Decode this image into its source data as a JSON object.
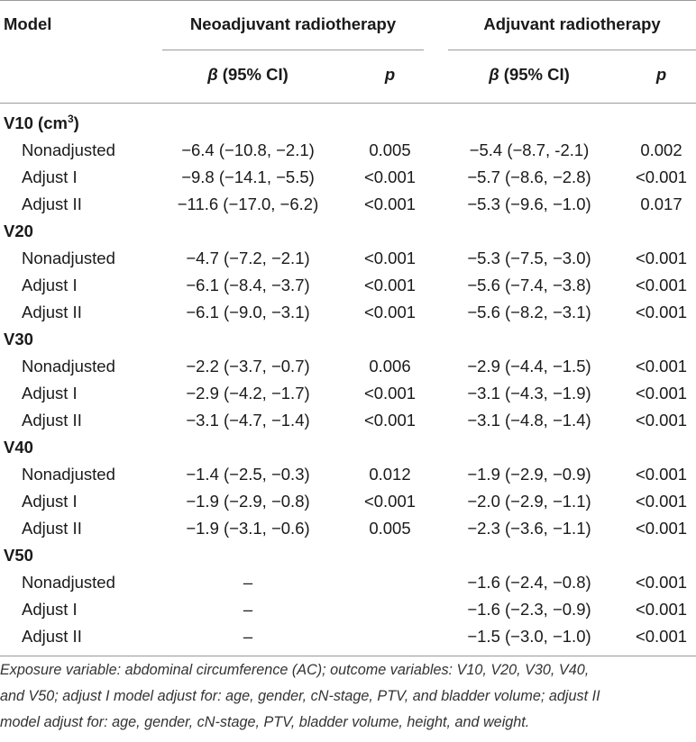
{
  "header": {
    "model": "Model",
    "neo": "Neoadjuvant radiotherapy",
    "adj": "Adjuvant radiotherapy",
    "beta_symbol": "β",
    "beta_rest": " (95% CI)",
    "p": "p"
  },
  "groups": [
    {
      "label": "V10 (cm",
      "sup": "3",
      "label_end": ")",
      "rows": [
        {
          "model": "Nonadjusted",
          "neo_beta": "−6.4 (−10.8, −2.1)",
          "neo_p": "0.005",
          "adj_beta": "−5.4 (−8.7, -2.1)",
          "adj_p": "0.002"
        },
        {
          "model": "Adjust I",
          "neo_beta": "−9.8 (−14.1, −5.5)",
          "neo_p": "<0.001",
          "adj_beta": "−5.7 (−8.6, −2.8)",
          "adj_p": "<0.001"
        },
        {
          "model": "Adjust II",
          "neo_beta": "−11.6 (−17.0, −6.2)",
          "neo_p": "<0.001",
          "adj_beta": "−5.3 (−9.6, −1.0)",
          "adj_p": "0.017"
        }
      ]
    },
    {
      "label": "V20",
      "rows": [
        {
          "model": "Nonadjusted",
          "neo_beta": "−4.7 (−7.2, −2.1)",
          "neo_p": "<0.001",
          "adj_beta": "−5.3 (−7.5, −3.0)",
          "adj_p": "<0.001"
        },
        {
          "model": "Adjust I",
          "neo_beta": "−6.1 (−8.4, −3.7)",
          "neo_p": "<0.001",
          "adj_beta": "−5.6 (−7.4, −3.8)",
          "adj_p": "<0.001"
        },
        {
          "model": "Adjust II",
          "neo_beta": "−6.1 (−9.0, −3.1)",
          "neo_p": "<0.001",
          "adj_beta": "−5.6 (−8.2, −3.1)",
          "adj_p": "<0.001"
        }
      ]
    },
    {
      "label": "V30",
      "rows": [
        {
          "model": "Nonadjusted",
          "neo_beta": "−2.2 (−3.7, −0.7)",
          "neo_p": "0.006",
          "adj_beta": "−2.9 (−4.4, −1.5)",
          "adj_p": "<0.001"
        },
        {
          "model": "Adjust I",
          "neo_beta": "−2.9 (−4.2, −1.7)",
          "neo_p": "<0.001",
          "adj_beta": "−3.1 (−4.3, −1.9)",
          "adj_p": "<0.001"
        },
        {
          "model": "Adjust II",
          "neo_beta": "−3.1 (−4.7, −1.4)",
          "neo_p": "<0.001",
          "adj_beta": "−3.1 (−4.8, −1.4)",
          "adj_p": "<0.001"
        }
      ]
    },
    {
      "label": "V40",
      "rows": [
        {
          "model": "Nonadjusted",
          "neo_beta": "−1.4 (−2.5, −0.3)",
          "neo_p": "0.012",
          "adj_beta": "−1.9 (−2.9, −0.9)",
          "adj_p": "<0.001"
        },
        {
          "model": "Adjust I",
          "neo_beta": "−1.9 (−2.9, −0.8)",
          "neo_p": "<0.001",
          "adj_beta": "−2.0 (−2.9, −1.1)",
          "adj_p": "<0.001"
        },
        {
          "model": "Adjust II",
          "neo_beta": "−1.9 (−3.1, −0.6)",
          "neo_p": "0.005",
          "adj_beta": "−2.3 (−3.6, −1.1)",
          "adj_p": "<0.001"
        }
      ]
    },
    {
      "label": "V50",
      "rows": [
        {
          "model": "Nonadjusted",
          "neo_beta": "–",
          "neo_p": "",
          "adj_beta": "−1.6 (−2.4, −0.8)",
          "adj_p": "<0.001"
        },
        {
          "model": "Adjust I",
          "neo_beta": "–",
          "neo_p": "",
          "adj_beta": "−1.6 (−2.3, −0.9)",
          "adj_p": "<0.001"
        },
        {
          "model": "Adjust II",
          "neo_beta": "–",
          "neo_p": "",
          "adj_beta": "−1.5 (−3.0, −1.0)",
          "adj_p": "<0.001"
        }
      ]
    }
  ],
  "footnote": [
    "Exposure variable: abdominal circumference (AC); outcome variables: V10, V20, V30, V40,",
    "and V50; adjust I model adjust for: age, gender, cN-stage, PTV, and bladder volume; adjust II",
    "model adjust for: age, gender, cN-stage, PTV, bladder volume, height, and weight."
  ]
}
